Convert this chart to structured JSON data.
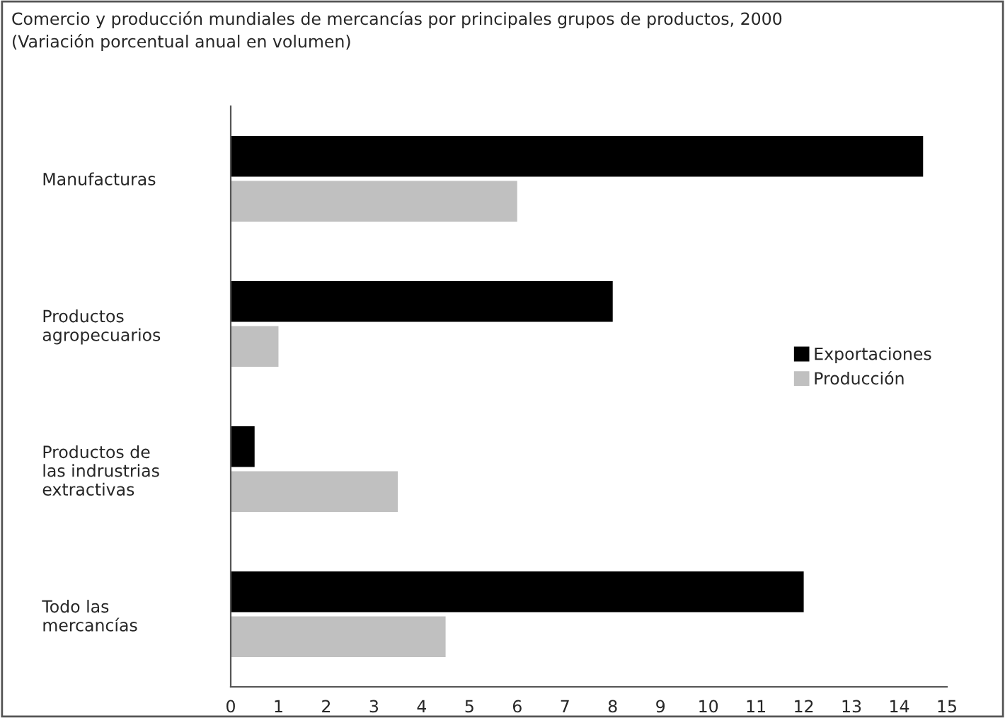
{
  "chart_data": {
    "type": "bar",
    "orientation": "horizontal",
    "title": "Comercio y producción mundiales de mercancías por principales grupos de productos, 2000",
    "subtitle": "(Variación porcentual anual en volumen)",
    "categories": [
      "Manufacturas",
      "Productos\nagropecuarios",
      "Productos de\nlas indrustrias\nextractivas",
      "Todo las\nmercancías"
    ],
    "series": [
      {
        "name": "Exportaciones",
        "color": "#000000",
        "values": [
          14.5,
          8,
          0.5,
          12
        ]
      },
      {
        "name": "Producción",
        "color": "#c0c0c0",
        "values": [
          6,
          1,
          3.5,
          4.5
        ]
      }
    ],
    "xlim": [
      0,
      15
    ],
    "xticks": [
      0,
      1,
      2,
      3,
      4,
      5,
      6,
      7,
      8,
      9,
      10,
      11,
      12,
      13,
      14,
      15
    ],
    "grid": false,
    "legend": "right"
  }
}
